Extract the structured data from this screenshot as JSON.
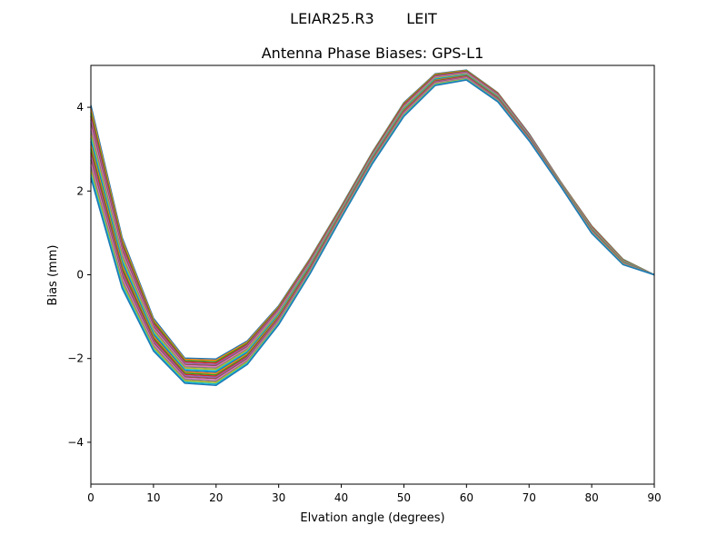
{
  "suptitle": "LEIAR25.R3       LEIT",
  "chart_data": {
    "type": "line",
    "title": "Antenna Phase Biases: GPS-L1",
    "xlabel": "Elvation angle (degrees)",
    "ylabel": "Bias (mm)",
    "xlim": [
      0,
      90
    ],
    "ylim": [
      -5,
      5
    ],
    "xticks": [
      0,
      10,
      20,
      30,
      40,
      50,
      60,
      70,
      80,
      90
    ],
    "yticks": [
      -4,
      -2,
      0,
      2,
      4
    ],
    "ytick_labels": [
      "−4",
      "−2",
      "0",
      "2",
      "4"
    ],
    "grid": false,
    "x": [
      0,
      5,
      10,
      15,
      20,
      25,
      30,
      35,
      40,
      45,
      50,
      55,
      60,
      65,
      70,
      75,
      80,
      85,
      90
    ],
    "colors": [
      "#1f77b4",
      "#ff7f0e",
      "#2ca02c",
      "#d62728",
      "#9467bd",
      "#8c564b",
      "#e377c2",
      "#7f7f7f",
      "#bcbd22",
      "#17becf"
    ],
    "series": [
      {
        "values": [
          4.05,
          0.89,
          -1.04,
          -1.99,
          -2.01,
          -1.58,
          -0.74,
          0.39,
          1.64,
          2.94,
          4.11,
          4.8,
          4.89,
          4.35,
          3.37,
          2.23,
          1.17,
          0.37,
          0
        ]
      },
      {
        "values": [
          3.7,
          0.65,
          -1.2,
          -2.11,
          -2.14,
          -1.69,
          -0.83,
          0.32,
          1.58,
          2.88,
          4.04,
          4.74,
          4.84,
          4.31,
          3.34,
          2.21,
          1.13,
          0.34,
          0
        ]
      },
      {
        "values": [
          3.35,
          0.41,
          -1.35,
          -2.23,
          -2.26,
          -1.8,
          -0.92,
          0.24,
          1.53,
          2.83,
          3.98,
          4.69,
          4.79,
          4.26,
          3.3,
          2.19,
          1.1,
          0.32,
          0
        ]
      },
      {
        "values": [
          3.01,
          0.16,
          -1.51,
          -2.35,
          -2.39,
          -1.92,
          -1.01,
          0.17,
          1.47,
          2.77,
          3.91,
          4.63,
          4.75,
          4.22,
          3.27,
          2.16,
          1.06,
          0.29,
          0
        ]
      },
      {
        "values": [
          2.66,
          -0.08,
          -1.66,
          -2.47,
          -2.51,
          -2.03,
          -1.1,
          0.09,
          1.42,
          2.72,
          3.85,
          4.58,
          4.7,
          4.17,
          3.23,
          2.14,
          1.03,
          0.27,
          0
        ]
      },
      {
        "values": [
          2.31,
          -0.32,
          -1.82,
          -2.59,
          -2.64,
          -2.14,
          -1.19,
          0.02,
          1.36,
          2.66,
          3.78,
          4.52,
          4.65,
          4.13,
          3.2,
          2.12,
          0.99,
          0.24,
          0
        ]
      }
    ]
  }
}
